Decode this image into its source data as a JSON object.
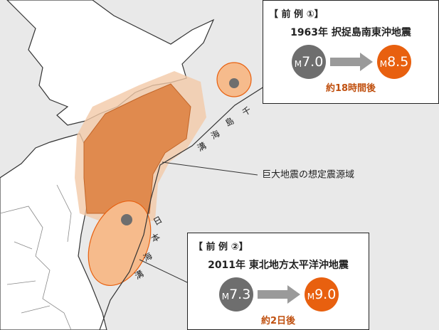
{
  "map_label": "巨大地震の想定震源域",
  "trench_labels": [
    [
      "千",
      "島",
      "海",
      "溝"
    ],
    [
      "日",
      "本",
      "海",
      "溝"
    ]
  ],
  "examples": [
    {
      "header": "【 前 例 ①】",
      "event": "1963年 択捉島南東沖地震",
      "from": {
        "unit": "M",
        "value": "7.0"
      },
      "to": {
        "unit": "M",
        "value": "8.5"
      },
      "interval": "約18時間後"
    },
    {
      "header": "【 前 例 ②】",
      "event": "2011年 東北地方太平洋沖地震",
      "from": {
        "unit": "M",
        "value": "7.3"
      },
      "to": {
        "unit": "M",
        "value": "9.0"
      },
      "interval": "約2日後"
    }
  ]
}
